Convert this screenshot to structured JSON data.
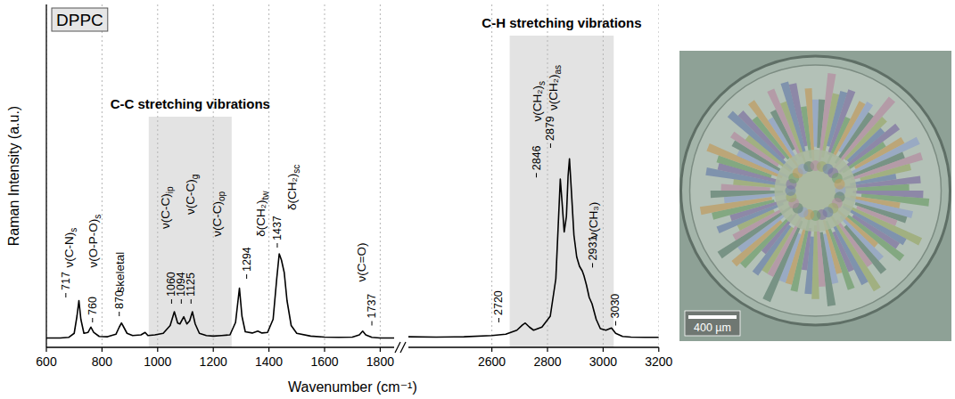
{
  "chart_data": [
    {
      "type": "line",
      "title": "DPPC",
      "ylabel": "Raman Intensity (a.u.)",
      "xlabel": "Wavenumber (cm⁻¹)",
      "xlim": [
        600,
        1850
      ],
      "ylim": [
        0,
        110
      ],
      "xticks": [
        600,
        800,
        1000,
        1200,
        1400,
        1600,
        1800
      ],
      "tick_labels": "x",
      "grid": true,
      "color": "#000000",
      "x": [
        600,
        650,
        680,
        700,
        710,
        717,
        724,
        735,
        750,
        760,
        770,
        790,
        820,
        850,
        862,
        870,
        878,
        890,
        910,
        940,
        955,
        965,
        990,
        1020,
        1045,
        1060,
        1072,
        1080,
        1094,
        1105,
        1115,
        1125,
        1135,
        1150,
        1175,
        1200,
        1230,
        1260,
        1280,
        1294,
        1303,
        1315,
        1340,
        1360,
        1375,
        1395,
        1415,
        1428,
        1437,
        1445,
        1455,
        1465,
        1480,
        1500,
        1550,
        1600,
        1650,
        1700,
        1725,
        1737,
        1748,
        1770,
        1800,
        1850
      ],
      "values": [
        3.0,
        3.0,
        3.2,
        4.5,
        10,
        15,
        9,
        4.5,
        4.8,
        6.5,
        4.8,
        3.5,
        3.4,
        4.2,
        6.5,
        7.8,
        6.5,
        4.5,
        3.8,
        4.0,
        4.8,
        3.8,
        4.0,
        4.5,
        7,
        11.4,
        7.8,
        7.5,
        9.8,
        7.5,
        8.5,
        11.4,
        7.5,
        4.5,
        3.8,
        3.6,
        3.8,
        4.0,
        8,
        19,
        10,
        5,
        4.6,
        5.2,
        4.6,
        4.8,
        9,
        22,
        30,
        28,
        24,
        15,
        7,
        4.5,
        3.6,
        3.3,
        3.2,
        3.3,
        4.0,
        5.2,
        4.0,
        3.2,
        3.0,
        3.0
      ],
      "bands": [
        {
          "label": "C-C stretching vibrations",
          "x": [
            968,
            1266
          ],
          "y": [
            0,
            74
          ]
        }
      ],
      "peaks": [
        {
          "value": 717,
          "x": 670,
          "y": 16
        },
        {
          "value": 760,
          "x": 766,
          "y": 8
        },
        {
          "value": 870,
          "x": 862,
          "y": 10
        },
        {
          "value": 1060,
          "x": 1050,
          "y": 14
        },
        {
          "value": 1094,
          "x": 1085,
          "y": 14
        },
        {
          "value": 1125,
          "x": 1120,
          "y": 14
        },
        {
          "value": 1294,
          "x": 1320,
          "y": 22
        },
        {
          "value": 1437,
          "x": 1430,
          "y": 32
        },
        {
          "value": 1737,
          "x": 1770,
          "y": 7
        }
      ],
      "annotations": [
        {
          "text": "ν(C-N)",
          "sub": "s",
          "x": 680,
          "y": 25.6
        },
        {
          "text": "ν(O-P-O)",
          "sub": "s",
          "x": 766,
          "y": 25.6
        },
        {
          "text": "skeletal",
          "x": 862,
          "y": 17.6
        },
        {
          "text": "ν(C-C)",
          "sub": "ip",
          "x": 1026,
          "y": 38
        },
        {
          "text": "ν(C-C)",
          "sub": "g",
          "x": 1115,
          "y": 42.6
        },
        {
          "text": "ν(C-C)",
          "sub": "op",
          "x": 1211,
          "y": 35.5
        },
        {
          "text": "δ(CH₂)",
          "sub": "tw",
          "x": 1368,
          "y": 35.5
        },
        {
          "text": "δ(CH₂)",
          "sub": "sc",
          "x": 1480,
          "y": 44
        },
        {
          "text": "ν(C=O)",
          "x": 1730,
          "y": 21
        }
      ]
    },
    {
      "type": "line",
      "xlim": [
        2300,
        3200
      ],
      "ylim": [
        0,
        110
      ],
      "xticks": [
        2600,
        2800,
        3000,
        3200
      ],
      "tick_labels": "x",
      "grid": true,
      "color": "#000000",
      "x": [
        2300,
        2400,
        2500,
        2600,
        2650,
        2690,
        2710,
        2720,
        2735,
        2750,
        2780,
        2810,
        2830,
        2840,
        2846,
        2852,
        2860,
        2868,
        2874,
        2879,
        2886,
        2895,
        2905,
        2915,
        2925,
        2931,
        2940,
        2950,
        2960,
        2975,
        2990,
        3010,
        3030,
        3045,
        3070,
        3100,
        3150,
        3200
      ],
      "values": [
        3.4,
        3.3,
        3.4,
        3.8,
        4.2,
        5.5,
        7.2,
        7.8,
        6.5,
        5.5,
        6.5,
        10,
        22,
        42,
        54,
        47,
        37,
        42,
        55,
        60.5,
        50,
        36,
        29,
        26,
        24.5,
        23,
        20,
        16,
        14,
        9,
        6,
        5.5,
        6.2,
        4.5,
        3.5,
        3.3,
        3.2,
        3.2
      ],
      "bands": [
        {
          "label": "C-H stretching vibrations",
          "x": [
            2664,
            3038
          ],
          "y": [
            0,
            100
          ]
        }
      ],
      "peaks": [
        {
          "value": 2720,
          "x": 2625,
          "y": 8
        },
        {
          "value": 2846,
          "x": 2760,
          "y": 54.5
        },
        {
          "value": 2879,
          "x": 2811,
          "y": 64
        },
        {
          "value": 2931,
          "x": 2962,
          "y": 25.6
        },
        {
          "value": 3030,
          "x": 3045,
          "y": 7
        }
      ],
      "annotations": [
        {
          "text": "ν(CH₂)",
          "sub": "s",
          "x": 2760,
          "y": 72.4
        },
        {
          "text": "ν(CH₂)",
          "sub": "as",
          "x": 2819,
          "y": 76
        },
        {
          "text": "ν(CH₃)",
          "x": 2962,
          "y": 35
        }
      ]
    }
  ],
  "image": {
    "scale_bar_label": "400 µm"
  }
}
